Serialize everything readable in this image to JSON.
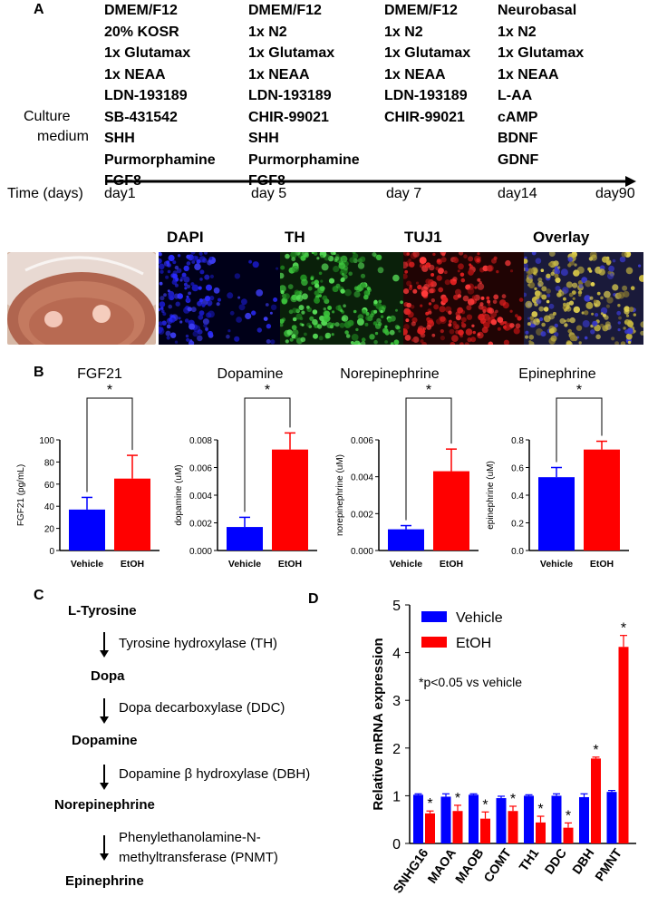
{
  "panel_a": {
    "letter": "A",
    "culture_medium_label": [
      "Culture",
      "medium"
    ],
    "time_label": "Time (days)",
    "media_columns": [
      [
        "DMEM/F12",
        "20%  KOSR",
        "1x Glutamax",
        "1x NEAA",
        "LDN-193189",
        "SB-431542",
        "SHH",
        "Purmorphamine",
        "FGF8"
      ],
      [
        "DMEM/F12",
        "1x N2",
        "1x Glutamax",
        "1x NEAA",
        "LDN-193189",
        "CHIR-99021",
        "SHH",
        "Purmorphamine",
        "FGF8"
      ],
      [
        "DMEM/F12",
        "1x N2",
        "1x Glutamax",
        "1x NEAA",
        "LDN-193189",
        "CHIR-99021"
      ],
      [
        "Neurobasal",
        "1x N2",
        "1x Glutamax",
        "1x NEAA",
        "L-AA",
        "cAMP",
        "BDNF",
        "GDNF"
      ]
    ],
    "day_ticks": [
      "day1",
      "day 5",
      "day 7",
      "day14",
      "day90"
    ],
    "image_labels": [
      "DAPI",
      "TH",
      "TUJ1",
      "Overlay"
    ],
    "image_colors": [
      "#1f1fd6",
      "#2fb52f",
      "#c81818",
      "#b8a63a"
    ]
  },
  "panel_b": {
    "letter": "B",
    "significance_mark": "*"
  },
  "panel_c": {
    "letter": "C",
    "nodes": [
      "L-Tyrosine",
      "Dopa",
      "Dopamine",
      "Norepinephrine",
      "Epinephrine"
    ],
    "enzymes": [
      "Tyrosine hydroxylase (TH)",
      "Dopa decarboxylase (DDC)",
      "Dopamine β hydroxylase (DBH)",
      "Phenylethanolamine-N-",
      "methyltransferase (PNMT)"
    ]
  },
  "panel_d": {
    "letter": "D",
    "note": "*p<0.05 vs vehicle"
  },
  "colors": {
    "vehicle": "#0000ff",
    "etoh": "#ff0000"
  },
  "chart_data": [
    {
      "type": "bar",
      "title": "FGF21",
      "ylabel": "FGF21 (pg/mL)",
      "categories": [
        "Vehicle",
        "EtOH"
      ],
      "values": [
        37,
        65
      ],
      "errors": [
        11,
        21
      ],
      "ylim": [
        0,
        100
      ],
      "yticks": [
        "0",
        "20",
        "40",
        "60",
        "80",
        "100"
      ],
      "ytick_values": [
        0,
        20,
        40,
        60,
        80,
        100
      ],
      "significance": "*"
    },
    {
      "type": "bar",
      "title": "Dopamine",
      "ylabel": "dopamine (uM)",
      "categories": [
        "Vehicle",
        "EtOH"
      ],
      "values": [
        0.0017,
        0.0073
      ],
      "errors": [
        0.0007,
        0.0012
      ],
      "ylim": [
        0,
        0.008
      ],
      "yticks": [
        "0.000",
        "0.002",
        "0.004",
        "0.006",
        "0.008"
      ],
      "ytick_values": [
        0,
        0.002,
        0.004,
        0.006,
        0.008
      ],
      "significance": "*"
    },
    {
      "type": "bar",
      "title": "Norepinephrine",
      "ylabel": "norepinephrine (uM)",
      "categories": [
        "Vehicle",
        "EtOH"
      ],
      "values": [
        0.00115,
        0.0043
      ],
      "errors": [
        0.0002,
        0.0012
      ],
      "ylim": [
        0,
        0.006
      ],
      "yticks": [
        "0.000",
        "0.002",
        "0.004",
        "0.006"
      ],
      "ytick_values": [
        0,
        0.002,
        0.004,
        0.006
      ],
      "significance": "*"
    },
    {
      "type": "bar",
      "title": "Epinephrine",
      "ylabel": "epinephrine (uM)",
      "categories": [
        "Vehicle",
        "EtOH"
      ],
      "values": [
        0.53,
        0.73
      ],
      "errors": [
        0.07,
        0.06
      ],
      "ylim": [
        0,
        0.8
      ],
      "yticks": [
        "0.0",
        "0.2",
        "0.4",
        "0.6",
        "0.8"
      ],
      "ytick_values": [
        0,
        0.2,
        0.4,
        0.6,
        0.8
      ],
      "significance": "*"
    },
    {
      "type": "bar",
      "ylabel": "Relative mRNA expression",
      "categories": [
        "SNHG16",
        "MAOA",
        "MAOB",
        "COMT",
        "TH1",
        "DDC",
        "DBH",
        "PMNT"
      ],
      "series": [
        {
          "name": "Vehicle",
          "values": [
            1.02,
            0.98,
            1.02,
            0.95,
            1.0,
            1.0,
            0.97,
            1.08
          ],
          "errors": [
            0.02,
            0.06,
            0.02,
            0.04,
            0.02,
            0.04,
            0.07,
            0.03
          ]
        },
        {
          "name": "EtOH",
          "values": [
            0.63,
            0.68,
            0.52,
            0.68,
            0.44,
            0.33,
            1.78,
            4.12
          ],
          "errors": [
            0.05,
            0.12,
            0.14,
            0.1,
            0.13,
            0.1,
            0.03,
            0.24
          ]
        }
      ],
      "significance": [
        "*",
        "*",
        "*",
        "*",
        "*",
        "*",
        "*",
        "*"
      ],
      "ylim": [
        0,
        5
      ],
      "yticks": [
        "0",
        "1",
        "2",
        "3",
        "4",
        "5"
      ],
      "ytick_values": [
        0,
        1,
        2,
        3,
        4,
        5
      ],
      "legend": "top-left"
    }
  ]
}
